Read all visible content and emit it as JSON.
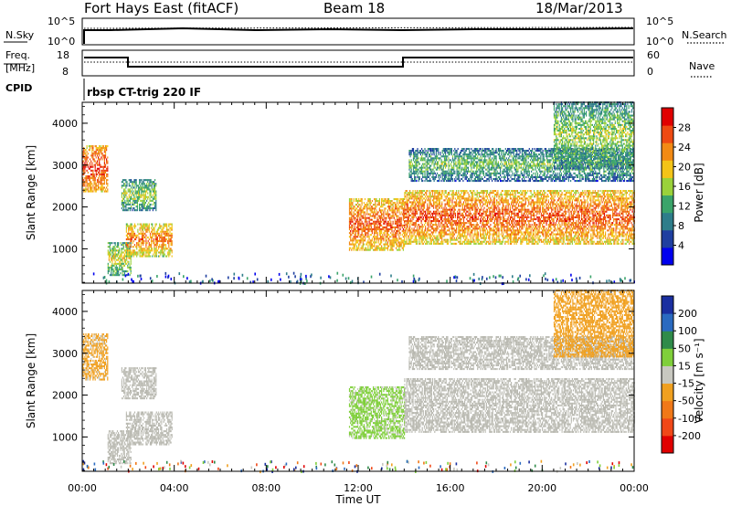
{
  "header": {
    "station": "Fort Hays East (fitACF)",
    "beam": "Beam 18",
    "date": "18/Mar/2013"
  },
  "strip_noise": {
    "left_label": "N.Sky",
    "left_ticks": [
      "10^5",
      "10^0"
    ],
    "right_label": "N.Search",
    "right_ticks": [
      "10^5",
      "10^0"
    ]
  },
  "strip_freq": {
    "left_label_1": "Freq.",
    "left_label_2": "[MHz]",
    "left_ticks": [
      "18",
      "8"
    ],
    "right_label": "Nave",
    "right_ticks": [
      "60",
      "0"
    ]
  },
  "cpid": {
    "label": "CPID",
    "value": "rbsp CT-trig 220 IF"
  },
  "colors": {
    "power_scale": [
      "#0000ee",
      "#1f3fa0",
      "#2e7d8a",
      "#3aa46a",
      "#9ad23a",
      "#f3c418",
      "#f28a14",
      "#ee4a12",
      "#e00000"
    ],
    "velocity_scale": [
      "#1a2fa0",
      "#2a6ac0",
      "#2f8b4a",
      "#7fcf3a",
      "#c8c8c0",
      "#f0a020",
      "#f07818",
      "#f04818",
      "#e00000"
    ],
    "ground_scatter": "#b8b8b0"
  },
  "chart_data": [
    {
      "type": "heatmap",
      "panel": "power",
      "ylabel": "Slant Range [km]",
      "y_ticks": [
        "1000",
        "2000",
        "3000",
        "4000"
      ],
      "ylim": [
        180,
        4500
      ],
      "x_ticks": [
        "00:00",
        "04:00",
        "08:00",
        "12:00",
        "16:00",
        "20:00",
        "00:00"
      ],
      "xlim_hours": [
        0,
        24
      ],
      "colorbar_label": "Power [dB]",
      "colorbar_ticks": [
        "4",
        "8",
        "12",
        "16",
        "20",
        "24",
        "28"
      ],
      "colorbar_range": [
        0,
        32
      ],
      "regions": [
        {
          "t0": 0.0,
          "t1": 1.1,
          "r0": 2350,
          "r1": 3450,
          "value": 24
        },
        {
          "t0": 1.7,
          "t1": 3.2,
          "r0": 1900,
          "r1": 2650,
          "value": 12
        },
        {
          "t0": 1.1,
          "t1": 2.1,
          "r0": 350,
          "r1": 1150,
          "value": 14
        },
        {
          "t0": 1.9,
          "t1": 3.9,
          "r0": 800,
          "r1": 1600,
          "value": 20
        },
        {
          "t0": 11.6,
          "t1": 14.0,
          "r0": 950,
          "r1": 2200,
          "value": 22
        },
        {
          "t0": 14.0,
          "t1": 24.0,
          "r0": 1100,
          "r1": 2400,
          "value": 22
        },
        {
          "t0": 14.2,
          "t1": 24.0,
          "r0": 2600,
          "r1": 3400,
          "value": 10
        },
        {
          "t0": 20.5,
          "t1": 24.0,
          "r0": 2900,
          "r1": 4500,
          "value": 12
        }
      ]
    },
    {
      "type": "heatmap",
      "panel": "velocity",
      "ylabel": "Slant Range [km]",
      "y_ticks": [
        "1000",
        "2000",
        "3000",
        "4000"
      ],
      "ylim": [
        180,
        4500
      ],
      "x_ticks": [
        "00:00",
        "04:00",
        "08:00",
        "12:00",
        "16:00",
        "20:00",
        "00:00"
      ],
      "xlim_hours": [
        0,
        24
      ],
      "xlabel": "Time UT",
      "colorbar_label": "Velocity [m s⁻¹]",
      "colorbar_ticks": [
        "200",
        "100",
        "50",
        "15",
        "-15",
        "-50",
        "-100",
        "-200"
      ],
      "colorbar_range": [
        -250,
        250
      ],
      "regions": [
        {
          "t0": 0.0,
          "t1": 1.1,
          "r0": 2350,
          "r1": 3450,
          "value": -40
        },
        {
          "t0": 1.7,
          "t1": 3.2,
          "r0": 1900,
          "r1": 2650,
          "value": 0
        },
        {
          "t0": 1.1,
          "t1": 2.1,
          "r0": 350,
          "r1": 1150,
          "value": 0
        },
        {
          "t0": 1.9,
          "t1": 3.9,
          "r0": 800,
          "r1": 1600,
          "value": 0
        },
        {
          "t0": 11.6,
          "t1": 14.0,
          "r0": 950,
          "r1": 2200,
          "value": 40
        },
        {
          "t0": 14.0,
          "t1": 24.0,
          "r0": 1100,
          "r1": 2400,
          "value": 0
        },
        {
          "t0": 14.2,
          "t1": 24.0,
          "r0": 2600,
          "r1": 3400,
          "value": 0
        },
        {
          "t0": 20.5,
          "t1": 24.0,
          "r0": 2900,
          "r1": 4500,
          "value": -60
        }
      ]
    }
  ]
}
